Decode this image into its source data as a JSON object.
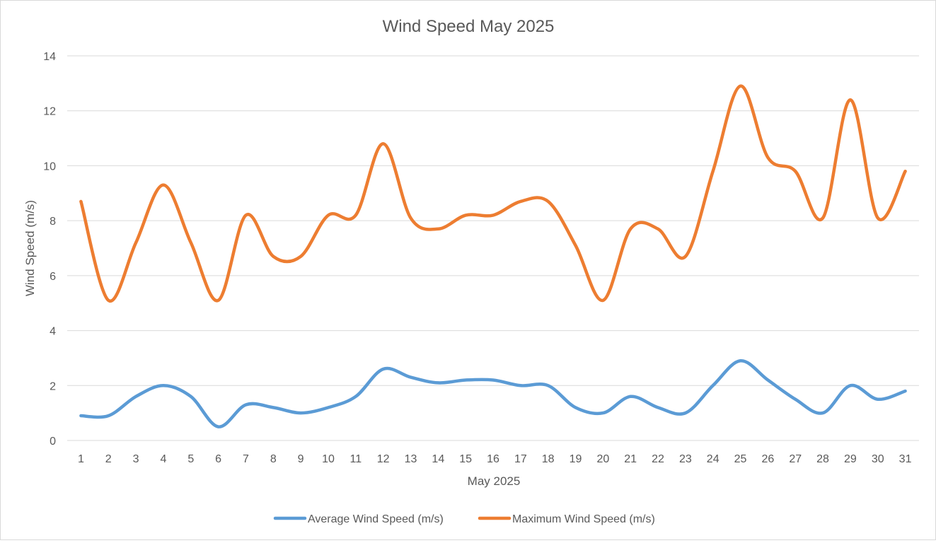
{
  "chart_data": {
    "type": "line",
    "title": "Wind Speed May 2025",
    "xlabel": "May 2025",
    "ylabel": "Wind Speed (m/s)",
    "ylim": [
      0,
      14
    ],
    "yticks": [
      0,
      2,
      4,
      6,
      8,
      10,
      12,
      14
    ],
    "grid": true,
    "legend_position": "bottom",
    "categories": [
      "1",
      "2",
      "3",
      "4",
      "5",
      "6",
      "7",
      "8",
      "9",
      "10",
      "11",
      "12",
      "13",
      "14",
      "15",
      "16",
      "17",
      "18",
      "19",
      "20",
      "21",
      "22",
      "23",
      "24",
      "25",
      "26",
      "27",
      "28",
      "29",
      "30",
      "31"
    ],
    "series": [
      {
        "name": "Average Wind Speed (m/s)",
        "color": "#5b9bd5",
        "values": [
          0.9,
          0.9,
          1.6,
          2.0,
          1.6,
          0.5,
          1.3,
          1.2,
          1.0,
          1.2,
          1.6,
          2.6,
          2.3,
          2.1,
          2.2,
          2.2,
          2.0,
          2.0,
          1.2,
          1.0,
          1.6,
          1.2,
          1.0,
          2.0,
          2.9,
          2.2,
          1.5,
          1.0,
          2.0,
          1.5,
          1.8
        ]
      },
      {
        "name": "Maximum Wind Speed (m/s)",
        "color": "#ed7d31",
        "values": [
          8.7,
          5.1,
          7.2,
          9.3,
          7.2,
          5.1,
          8.2,
          6.7,
          6.7,
          8.2,
          8.2,
          10.8,
          8.1,
          7.7,
          8.2,
          8.2,
          8.7,
          8.7,
          7.1,
          5.1,
          7.7,
          7.7,
          6.7,
          9.8,
          12.9,
          10.3,
          9.8,
          8.1,
          12.4,
          8.1,
          9.8
        ]
      }
    ]
  }
}
